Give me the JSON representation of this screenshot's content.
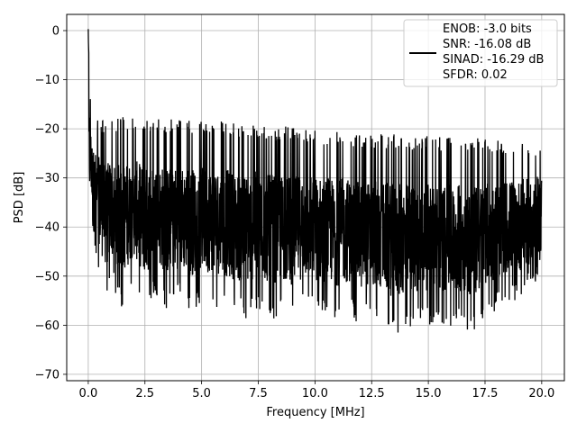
{
  "chart_data": {
    "type": "line",
    "title": "",
    "xlabel": "Frequency [MHz]",
    "ylabel": "PSD [dB]",
    "xlim": [
      -0.95,
      21.0
    ],
    "ylim": [
      -71.3,
      3.3
    ],
    "xticks": [
      0.0,
      2.5,
      5.0,
      7.5,
      10.0,
      12.5,
      15.0,
      17.5,
      20.0
    ],
    "xtick_labels": [
      "0.0",
      "2.5",
      "5.0",
      "7.5",
      "10.0",
      "12.5",
      "15.0",
      "17.5",
      "20.0"
    ],
    "yticks": [
      0,
      -10,
      -20,
      -30,
      -40,
      -50,
      -60,
      -70
    ],
    "ytick_labels": [
      "0",
      "−10",
      "−20",
      "−30",
      "−40",
      "−50",
      "−60",
      "−70"
    ],
    "grid": true,
    "legend_position": "top-right",
    "legend_lines": [
      "ENOB: -3.0 bits",
      "SNR: -16.08 dB",
      "SINAD: -16.29 dB",
      "SFDR: 0.02"
    ],
    "series": [
      {
        "color": "#000000",
        "x": [
          0.0,
          0.02,
          0.05,
          0.1,
          0.15,
          0.2,
          0.3,
          0.4,
          0.5,
          0.6,
          0.8,
          1.0,
          1.5,
          2.0,
          2.5,
          3.0,
          3.5,
          4.0,
          4.5,
          5.0,
          5.5,
          6.0,
          6.5,
          7.0,
          7.5,
          8.0,
          8.5,
          9.0,
          9.5,
          10.0,
          10.5,
          11.0,
          11.5,
          12.0,
          12.5,
          13.0,
          13.5,
          14.0,
          14.5,
          15.0,
          15.5,
          16.0,
          16.5,
          17.0,
          17.5,
          18.0,
          18.5,
          19.0,
          19.5,
          20.0
        ],
        "y_upper": [
          0,
          -5,
          -10,
          -13,
          -15,
          -16,
          -17,
          -17.5,
          -18,
          -18,
          -18,
          -17.5,
          -17.5,
          -17.5,
          -18,
          -18,
          -18,
          -18,
          -18,
          -18.5,
          -18.5,
          -18.5,
          -19,
          -19,
          -19,
          -19.5,
          -19.5,
          -19.5,
          -20,
          -20,
          -20.5,
          -20.5,
          -20.5,
          -21,
          -21,
          -21,
          -21,
          -21,
          -21.5,
          -21.5,
          -21.5,
          -21.5,
          -21.5,
          -21.5,
          -22,
          -22,
          -22,
          -22,
          -22.5,
          -22.5
        ],
        "y_lower": [
          -36,
          -38,
          -39,
          -38,
          -39,
          -47,
          -46,
          -50,
          -49,
          -52,
          -55,
          -52,
          -57,
          -52,
          -57,
          -54,
          -57,
          -55,
          -57,
          -56,
          -56,
          -57,
          -58,
          -59,
          -57,
          -59,
          -58,
          -59,
          -57,
          -58,
          -58,
          -59,
          -58,
          -60,
          -59,
          -60,
          -62,
          -61,
          -60,
          -60,
          -60,
          -61,
          -60,
          -62,
          -58,
          -57,
          -55,
          -55,
          -53,
          -50
        ]
      }
    ]
  }
}
